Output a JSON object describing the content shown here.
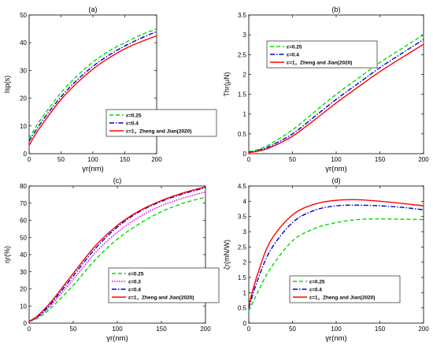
{
  "chart_data": [
    {
      "type": "line",
      "title": "(a)",
      "xlabel": "γr(nm)",
      "ylabel": "Isp(s)",
      "xlim": [
        0,
        200
      ],
      "ylim": [
        0,
        50
      ],
      "xticks": [
        0,
        50,
        100,
        150,
        200
      ],
      "yticks": [
        0,
        10,
        20,
        30,
        40,
        50
      ],
      "legend_position": "bottom-right",
      "series": [
        {
          "name": "ε=0.25",
          "color": "#00dd00",
          "dash": "dashed",
          "x": [
            0,
            10,
            25,
            50,
            75,
            100,
            125,
            150,
            175,
            200
          ],
          "y": [
            5.5,
            9.5,
            14.5,
            22,
            28,
            33,
            37,
            40,
            42.8,
            45
          ]
        },
        {
          "name": "ε=0.4",
          "color": "#0000cc",
          "dash": "dashdot",
          "x": [
            0,
            10,
            25,
            50,
            75,
            100,
            125,
            150,
            175,
            200
          ],
          "y": [
            4.5,
            8.2,
            13.2,
            20.5,
            26.5,
            31.5,
            35.5,
            38.8,
            41.6,
            44
          ]
        },
        {
          "name": "ε=1，Zheng and Jian(2020)",
          "color": "#ff0000",
          "dash": "solid",
          "x": [
            0,
            10,
            25,
            50,
            75,
            100,
            125,
            150,
            175,
            200
          ],
          "y": [
            3,
            7,
            12,
            19.5,
            25.5,
            30.5,
            34.5,
            37.8,
            40.3,
            42.5
          ]
        }
      ]
    },
    {
      "type": "line",
      "title": "(b)",
      "xlabel": "γr(nm)",
      "ylabel": "Thr(μN)",
      "xlim": [
        0,
        200
      ],
      "ylim": [
        0,
        3.5
      ],
      "xticks": [
        0,
        50,
        100,
        150,
        200
      ],
      "yticks": [
        0,
        0.5,
        1,
        1.5,
        2,
        2.5,
        3,
        3.5
      ],
      "legend_position": "top-left",
      "series": [
        {
          "name": "ε=0.25",
          "color": "#00dd00",
          "dash": "dashed",
          "x": [
            0,
            10,
            25,
            50,
            75,
            100,
            125,
            150,
            175,
            200
          ],
          "y": [
            0.05,
            0.1,
            0.25,
            0.6,
            1.05,
            1.5,
            1.9,
            2.3,
            2.65,
            3.0
          ]
        },
        {
          "name": "ε=0.4",
          "color": "#0000cc",
          "dash": "dashdot",
          "x": [
            0,
            10,
            25,
            50,
            75,
            100,
            125,
            150,
            175,
            200
          ],
          "y": [
            0.04,
            0.08,
            0.2,
            0.5,
            0.93,
            1.37,
            1.77,
            2.17,
            2.53,
            2.88
          ]
        },
        {
          "name": "ε=1，Zheng and Jian(2020)",
          "color": "#ff0000",
          "dash": "solid",
          "x": [
            0,
            10,
            25,
            50,
            75,
            100,
            125,
            150,
            175,
            200
          ],
          "y": [
            0.03,
            0.06,
            0.16,
            0.44,
            0.85,
            1.28,
            1.68,
            2.07,
            2.42,
            2.76
          ]
        }
      ]
    },
    {
      "type": "line",
      "title": "(c)",
      "xlabel": "γr(nm)",
      "ylabel": "ηr(%)",
      "xlim": [
        0,
        200
      ],
      "ylim": [
        0,
        80
      ],
      "xticks": [
        0,
        50,
        100,
        150,
        200
      ],
      "yticks": [
        0,
        10,
        20,
        30,
        40,
        50,
        60,
        70,
        80
      ],
      "legend_position": "bottom-right",
      "series": [
        {
          "name": "ε=0.25",
          "color": "#00dd00",
          "dash": "dashed",
          "x": [
            0,
            10,
            25,
            50,
            75,
            100,
            125,
            150,
            175,
            200
          ],
          "y": [
            1,
            3,
            9,
            22,
            37,
            49,
            58,
            65,
            70,
            73.5
          ]
        },
        {
          "name": "ε=0.3",
          "color": "#dd00dd",
          "dash": "dotted",
          "x": [
            0,
            10,
            25,
            50,
            75,
            100,
            125,
            150,
            175,
            200
          ],
          "y": [
            1,
            3.5,
            10.5,
            25.5,
            41,
            53,
            62,
            68.5,
            73,
            76.5
          ]
        },
        {
          "name": "ε=0.4",
          "color": "#0000cc",
          "dash": "dashdot",
          "x": [
            0,
            10,
            25,
            50,
            75,
            100,
            125,
            150,
            175,
            200
          ],
          "y": [
            1,
            4,
            11.5,
            27.5,
            43.5,
            56,
            65,
            71,
            75.5,
            79
          ]
        },
        {
          "name": "ε=1，Zheng and Jian(2020)",
          "color": "#ff0000",
          "dash": "solid",
          "x": [
            0,
            10,
            25,
            50,
            75,
            100,
            125,
            150,
            175,
            200
          ],
          "y": [
            1,
            4.5,
            12.5,
            29,
            45,
            57,
            65.5,
            71.5,
            76,
            79.5
          ]
        }
      ]
    },
    {
      "type": "line",
      "title": "(d)",
      "xlabel": "γr(nm)",
      "ylabel": "ζr(mN/W)",
      "xlim": [
        0,
        200
      ],
      "ylim": [
        0,
        4.5
      ],
      "xticks": [
        0,
        50,
        100,
        150,
        200
      ],
      "yticks": [
        0,
        0.5,
        1,
        1.5,
        2,
        2.5,
        3,
        3.5,
        4,
        4.5
      ],
      "legend_position": "bottom-right",
      "series": [
        {
          "name": "ε=0.25",
          "color": "#00dd00",
          "dash": "dashed",
          "x": [
            0,
            10,
            25,
            50,
            75,
            100,
            125,
            150,
            175,
            200
          ],
          "y": [
            0.4,
            1.0,
            1.8,
            2.7,
            3.1,
            3.3,
            3.4,
            3.42,
            3.41,
            3.4
          ]
        },
        {
          "name": "ε=0.4",
          "color": "#0000cc",
          "dash": "dashdot",
          "x": [
            0,
            10,
            25,
            50,
            75,
            100,
            125,
            150,
            175,
            200
          ],
          "y": [
            0.5,
            1.4,
            2.4,
            3.3,
            3.7,
            3.85,
            3.87,
            3.85,
            3.8,
            3.72
          ]
        },
        {
          "name": "ε=1，Zheng and Jian(2020)",
          "color": "#ff0000",
          "dash": "solid",
          "x": [
            0,
            10,
            25,
            50,
            75,
            100,
            125,
            150,
            175,
            200
          ],
          "y": [
            0.6,
            1.6,
            2.7,
            3.55,
            3.9,
            4.03,
            4.05,
            4.0,
            3.93,
            3.85
          ]
        }
      ]
    }
  ]
}
